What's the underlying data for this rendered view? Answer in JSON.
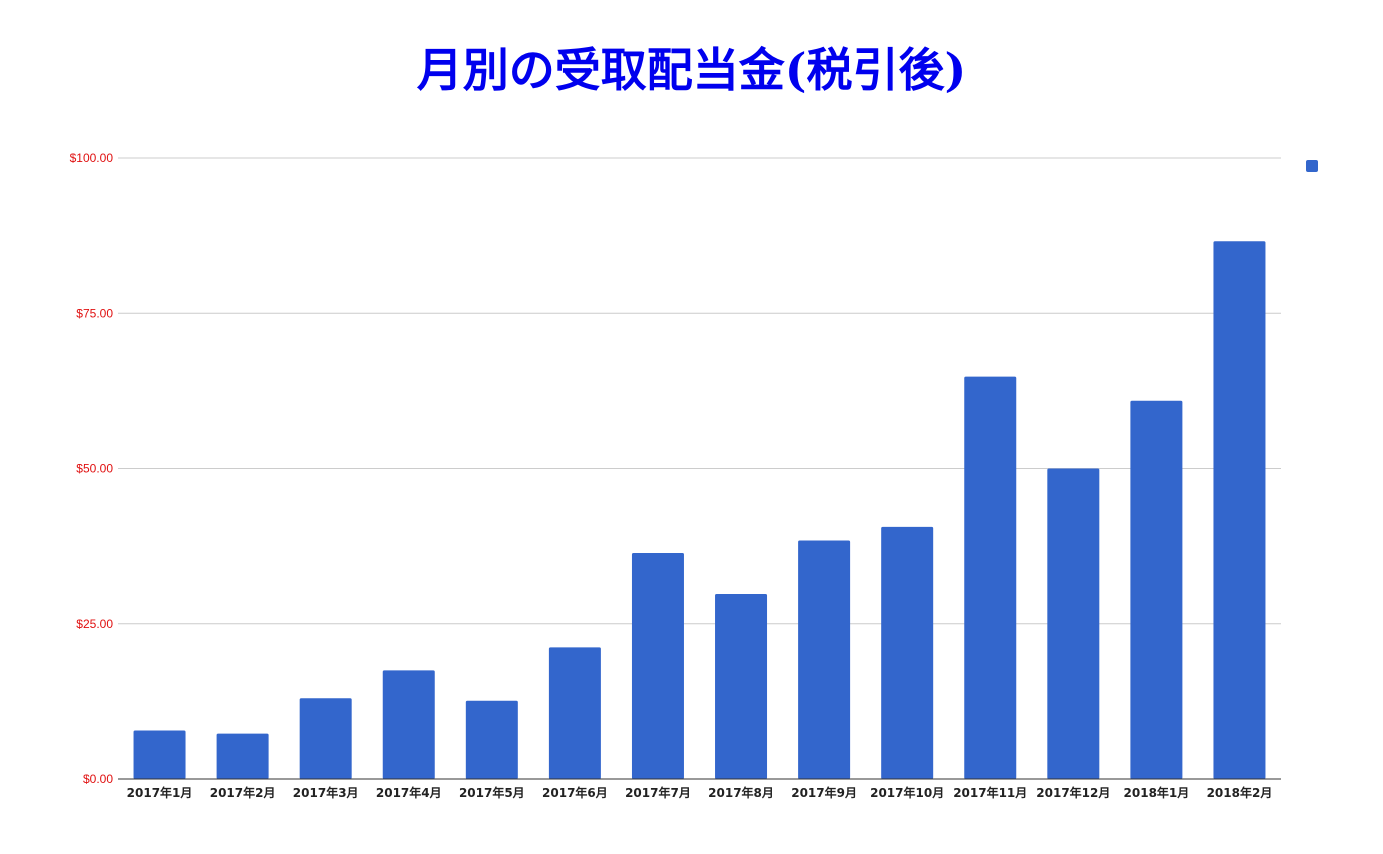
{
  "chart_data": {
    "type": "bar",
    "title": "月別の受取配当金(税引後)",
    "categories": [
      "2017年1月",
      "2017年2月",
      "2017年3月",
      "2017年4月",
      "2017年5月",
      "2017年6月",
      "2017年7月",
      "2017年8月",
      "2017年9月",
      "2017年10月",
      "2017年11月",
      "2017年12月",
      "2018年1月",
      "2018年2月"
    ],
    "series": [
      {
        "values": [
          7.8,
          7.3,
          13.0,
          17.5,
          12.6,
          21.2,
          36.4,
          29.8,
          38.4,
          40.6,
          64.8,
          50.0,
          60.9,
          86.6
        ]
      }
    ],
    "yticks": [
      "$0.00",
      "$25.00",
      "$50.00",
      "$75.00",
      "$100.00"
    ],
    "ylim": [
      0,
      100
    ],
    "grid": true,
    "legend_position": "top-right",
    "colors": {
      "bar": "#3366cc",
      "title": "#0000ee",
      "y_tick_labels": "#e01010",
      "gridline": "#cccccc",
      "axis": "#333333"
    }
  }
}
